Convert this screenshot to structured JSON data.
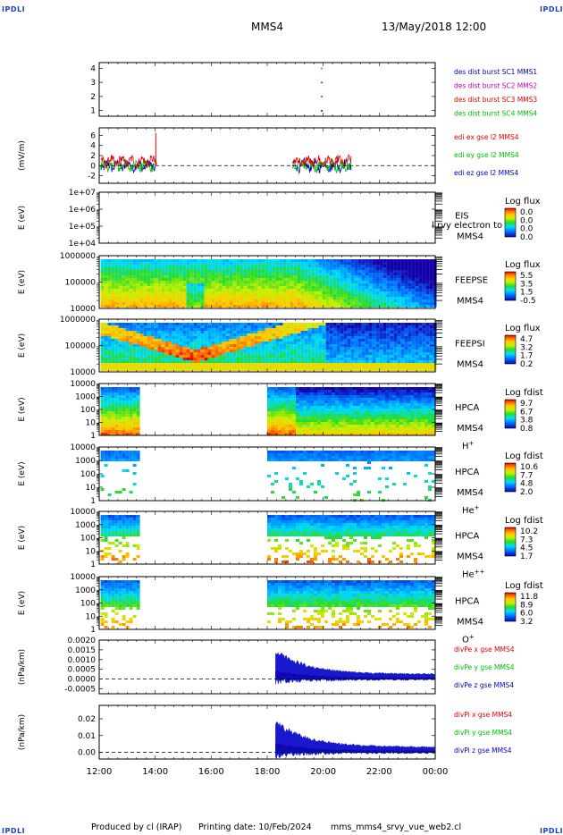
{
  "header": {
    "corner_label": "IPDLI",
    "spacecraft": "MMS4",
    "datetime": "13/May/2018 12:00"
  },
  "footer": {
    "credit": "Produced by cl (IRAP)",
    "printed": "Printing date: 10/Feb/2024",
    "file": "mms_mms4_srvy_vue_web2.cl"
  },
  "colors": {
    "red": "#e00000",
    "green": "#00c000",
    "blue": "#0000c8",
    "magenta": "#c000c0"
  },
  "chart_data": {
    "type": "multi-panel",
    "x_ticks": [
      "12:00",
      "14:00",
      "16:00",
      "18:00",
      "20:00",
      "22:00",
      "00:00"
    ],
    "x_range_hours": [
      12,
      24
    ],
    "panels": [
      {
        "id": "burst",
        "type": "scatter",
        "yticks": [
          "4",
          "3",
          "2",
          "1"
        ],
        "ylim": [
          0.6,
          4.4
        ],
        "ylabel": "",
        "legend": [
          {
            "label": "des dist burst SC1 MMS1",
            "color": "#0000c8"
          },
          {
            "label": "des dist burst SC2 MMS2",
            "color": "#c000c0"
          },
          {
            "label": "des dist burst SC3 MMS3",
            "color": "#e00000"
          },
          {
            "label": "des dist burst SC4 MMS4",
            "color": "#00c000"
          }
        ],
        "points": [
          {
            "t": 19.95,
            "y": 4,
            "color": "#00c000"
          },
          {
            "t": 19.95,
            "y": 3,
            "color": "#e00000"
          },
          {
            "t": 19.95,
            "y": 2,
            "color": "#c000c0"
          },
          {
            "t": 19.95,
            "y": 1,
            "color": "#0000c8"
          }
        ]
      },
      {
        "id": "edi",
        "type": "line",
        "ylabel": "(mV/m)",
        "yticks": [
          "6",
          "4",
          "2",
          "0",
          "-2"
        ],
        "ylim": [
          -3.5,
          7.5
        ],
        "zero_line": true,
        "legend": [
          {
            "label": "edi ex gse l2 MMS4",
            "color": "#e00000"
          },
          {
            "label": "edi ey gse l2 MMS4",
            "color": "#00c000"
          },
          {
            "label": "edi ez gse l2 MMS4",
            "color": "#0000c8"
          }
        ],
        "segments": [
          [
            12.05,
            14.05
          ],
          [
            18.9,
            21.0
          ]
        ],
        "spike": {
          "t": 14.02,
          "y": 6.5
        }
      },
      {
        "id": "eis",
        "type": "heatmap",
        "ylabel": "E (eV)",
        "yticks": [
          "1e+07",
          "1e+06",
          "1e+05",
          "1e+04"
        ],
        "name_lines": [
          "EIS",
          "MMS4"
        ],
        "overflow_text": "l rvy electron to",
        "cbar_title": "Log flux",
        "cbar_ticks": [
          "0.0",
          "0.0",
          "0.0",
          "0.0"
        ],
        "empty": true
      },
      {
        "id": "feepse",
        "type": "heatmap",
        "ylabel": "E (eV)",
        "yticks": [
          "1000000",
          "100000",
          "10000"
        ],
        "name_lines": [
          "FEEPSE",
          "MMS4"
        ],
        "cbar_title": "Log flux",
        "cbar_ticks": [
          "5.5",
          "3.5",
          "1.5",
          "-0.5"
        ],
        "coverage": [
          [
            12.05,
            24
          ]
        ]
      },
      {
        "id": "feepsi",
        "type": "heatmap",
        "ylabel": "E (eV)",
        "yticks": [
          "1000000",
          "100000",
          "10000"
        ],
        "name_lines": [
          "FEEPSI",
          "MMS4"
        ],
        "cbar_title": "Log flux",
        "cbar_ticks": [
          "4.7",
          "3.2",
          "1.7",
          "0.2"
        ],
        "coverage": [
          [
            12.05,
            24
          ]
        ]
      },
      {
        "id": "hpca_h",
        "type": "heatmap",
        "ylabel": "E (eV)",
        "yticks": [
          "10000",
          "1000",
          "100",
          "10",
          "1"
        ],
        "name_lines": [
          "HPCA",
          "MMS4"
        ],
        "species": "H",
        "species_sup": "+",
        "cbar_title": "Log fdist",
        "cbar_ticks": [
          "9.7",
          "6.7",
          "3.8",
          "0.8"
        ],
        "coverage": [
          [
            12.05,
            13.4
          ],
          [
            18.0,
            24
          ]
        ]
      },
      {
        "id": "hpca_he",
        "type": "heatmap",
        "ylabel": "E (eV)",
        "yticks": [
          "10000",
          "1000",
          "100",
          "10",
          "1"
        ],
        "name_lines": [
          "HPCA",
          "MMS4"
        ],
        "species": "He",
        "species_sup": "+",
        "cbar_title": "Log fdist",
        "cbar_ticks": [
          "10.6",
          "7.7",
          "4.8",
          "2.0"
        ],
        "coverage": [
          [
            12.05,
            13.4
          ],
          [
            18.0,
            24
          ]
        ]
      },
      {
        "id": "hpca_hepp",
        "type": "heatmap",
        "ylabel": "E (eV)",
        "yticks": [
          "10000",
          "1000",
          "100",
          "10",
          "1"
        ],
        "name_lines": [
          "HPCA",
          "MMS4"
        ],
        "species": "He",
        "species_sup": "++",
        "cbar_title": "Log fdist",
        "cbar_ticks": [
          "10.2",
          "7.3",
          "4.5",
          "1.7"
        ],
        "coverage": [
          [
            12.05,
            13.4
          ],
          [
            18.0,
            24
          ]
        ]
      },
      {
        "id": "hpca_o",
        "type": "heatmap",
        "ylabel": "E (eV)",
        "yticks": [
          "10000",
          "1000",
          "100",
          "10",
          "1"
        ],
        "name_lines": [
          "HPCA",
          "MMS4"
        ],
        "species": "O",
        "species_sup": "+",
        "cbar_title": "Log fdist",
        "cbar_ticks": [
          "11.8",
          "8.9",
          "6.0",
          "3.2"
        ],
        "coverage": [
          [
            12.05,
            13.4
          ],
          [
            18.0,
            24
          ]
        ]
      },
      {
        "id": "divpe",
        "type": "line",
        "ylabel": "(nPa/km)",
        "yticks": [
          "0.0020",
          "0.0015",
          "0.0010",
          "0.0005",
          "0.0000",
          "-0.0005"
        ],
        "ylim": [
          -0.00075,
          0.002
        ],
        "zero_line": true,
        "legend": [
          {
            "label": "divPe x gse MMS4",
            "color": "#e00000"
          },
          {
            "label": "divPe y gse MMS4",
            "color": "#00c000"
          },
          {
            "label": "divPe z gse MMS4",
            "color": "#0000c8"
          }
        ],
        "start": 18.3,
        "peak": 0.0018
      },
      {
        "id": "divpi",
        "type": "line",
        "ylabel": "(nPa/km)",
        "yticks": [
          "0.02",
          "0.01",
          "0.00"
        ],
        "ylim": [
          -0.004,
          0.028
        ],
        "zero_line": true,
        "legend": [
          {
            "label": "divPi x gse MMS4",
            "color": "#e00000"
          },
          {
            "label": "divPi y gse MMS4",
            "color": "#00c000"
          },
          {
            "label": "divPi z gse MMS4",
            "color": "#0000c8"
          }
        ],
        "start": 18.3,
        "peak": 0.022
      }
    ]
  }
}
